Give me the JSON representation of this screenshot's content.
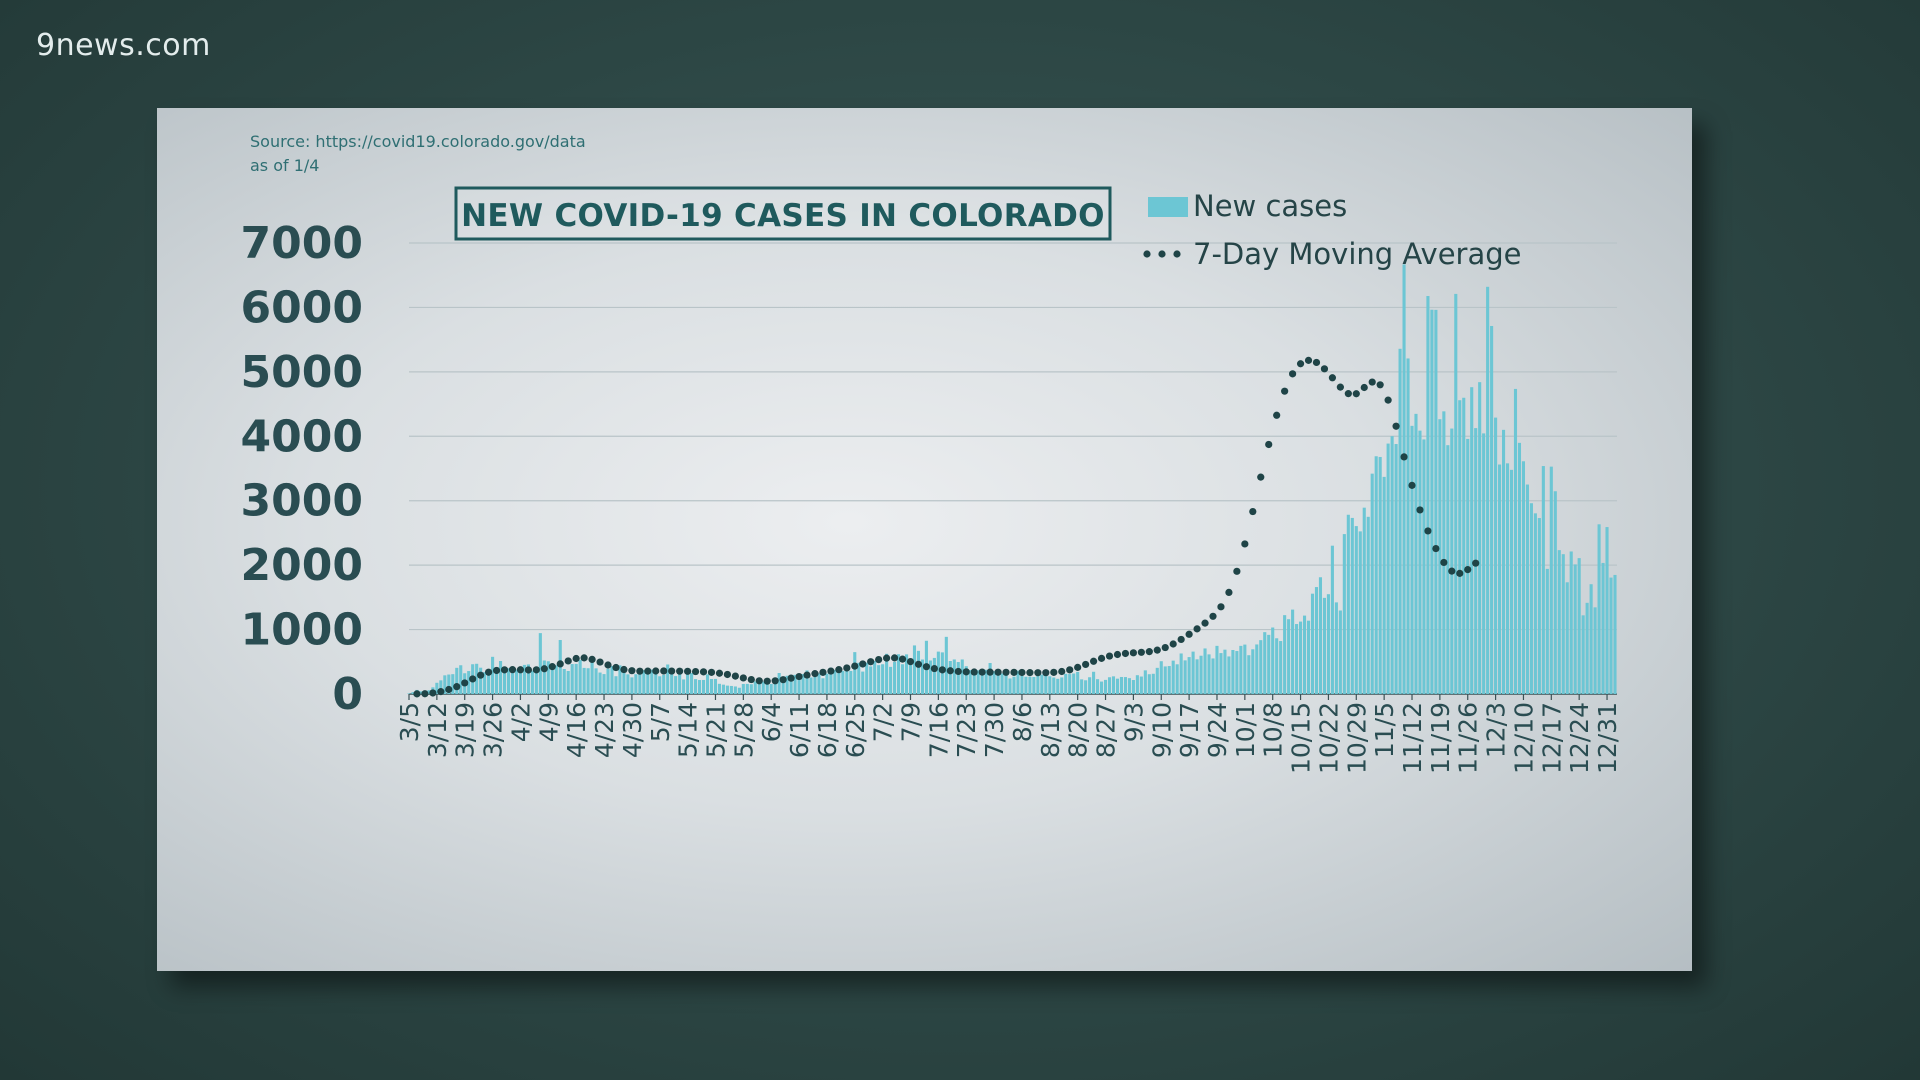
{
  "brand": {
    "name": "9news.com"
  },
  "chart_data": {
    "type": "bar",
    "title": "NEW COVID-19 CASES IN COLORADO",
    "source": "Source: https://covid19.colorado.gov/data",
    "as_of": "as of 1/4",
    "xlabel": "",
    "ylabel": "",
    "ylim": [
      0,
      7000
    ],
    "yticks": [
      0,
      1000,
      2000,
      3000,
      4000,
      5000,
      6000,
      7000
    ],
    "grid": true,
    "legend_position": "top-right",
    "colors": {
      "bar": "#6cc6d4",
      "bar_edge": "#52aebf",
      "average": "#1f4447",
      "grid": "#b9c4c8",
      "axis": "#3b5256"
    },
    "series": [
      {
        "name": "New cases",
        "type": "bar",
        "x_start": "3/5",
        "values": [
          9,
          28,
          63,
          41,
          25,
          58,
          103,
          174,
          212,
          290,
          302,
          308,
          406,
          446,
          322,
          356,
          462,
          469,
          408,
          339,
          292,
          577,
          350,
          512,
          409,
          400,
          396,
          376,
          386,
          452,
          459,
          363,
          395,
          945,
          520,
          508,
          456,
          445,
          838,
          388,
          357,
          465,
          467,
          527,
          405,
          400,
          488,
          398,
          333,
          309,
          392,
          434,
          276,
          445,
          408,
          305,
          258,
          307,
          367,
          370,
          338,
          380,
          355,
          275,
          298,
          458,
          355,
          278,
          342,
          226,
          316,
          327,
          231,
          217,
          218,
          304,
          233,
          234,
          158,
          145,
          130,
          125,
          117,
          97,
          156,
          157,
          152,
          195,
          166,
          193,
          227,
          156,
          251,
          326,
          237,
          283,
          289,
          298,
          216,
          310,
          366,
          257,
          352,
          320,
          244,
          316,
          411,
          374,
          327,
          359,
          365,
          358,
          650,
          484,
          348,
          487,
          428,
          512,
          448,
          462,
          624,
          421,
          498,
          617,
          462,
          615,
          520,
          754,
          670,
          535,
          826,
          520,
          560,
          658,
          646,
          887,
          512,
          536,
          496,
          536,
          431,
          372,
          347,
          369,
          387,
          376,
          481,
          355,
          299,
          319,
          294,
          241,
          268,
          363,
          279,
          268,
          267,
          264,
          279,
          301,
          282,
          275,
          256,
          236,
          257,
          313,
          309,
          318,
          343,
          227,
          213,
          260,
          345,
          230,
          193,
          219,
          260,
          274,
          238,
          264,
          263,
          246,
          217,
          292,
          271,
          367,
          307,
          314,
          406,
          509,
          428,
          434,
          518,
          461,
          629,
          522,
          573,
          658,
          538,
          594,
          707,
          615,
          552,
          747,
          635,
          688,
          583,
          683,
          667,
          747,
          767,
          602,
          694,
          769,
          836,
          960,
          918,
          1032,
          865,
          822,
          1224,
          1161,
          1310,
          1086,
          1124,
          1217,
          1138,
          1557,
          1660,
          1812,
          1492,
          1549,
          2302,
          1422,
          1296,
          2482,
          2782,
          2733,
          2606,
          2524,
          2892,
          2750,
          3420,
          3690,
          3679,
          3370,
          3887,
          4002,
          3880,
          5358,
          6667,
          5208,
          4162,
          4348,
          4088,
          3951,
          6177,
          5964,
          5962,
          4265,
          4387,
          3862,
          4120,
          6210,
          4560,
          4598,
          3959,
          4762,
          4127,
          4840,
          4045,
          6320,
          5712,
          4290,
          3562,
          4100,
          3580,
          3479,
          4735,
          3898,
          3612,
          3251,
          2961,
          2804,
          2731,
          3538,
          1942,
          3529,
          3147,
          2233,
          2170,
          1734,
          2212,
          2012,
          2109,
          1221,
          1415,
          1704,
          1345,
          2634,
          2034,
          2591,
          1807,
          1848
        ]
      },
      {
        "name": "7-Day Moving Average",
        "type": "dotted-line",
        "x_start": "3/7",
        "x_step_days": 2,
        "values": [
          2,
          4,
          16,
          37,
          70,
          114,
          172,
          234,
          292,
          338,
          365,
          375,
          378,
          376,
          373,
          375,
          392,
          425,
          467,
          513,
          551,
          561,
          537,
          496,
          450,
          411,
          380,
          362,
          354,
          355,
          357,
          358,
          356,
          354,
          352,
          348,
          344,
          336,
          322,
          303,
          278,
          249,
          224,
          205,
          199,
          205,
          222,
          246,
          271,
          294,
          316,
          336,
          356,
          378,
          404,
          433,
          466,
          501,
          534,
          557,
          561,
          541,
          503,
          461,
          424,
          395,
          375,
          361,
          350,
          344,
          341,
          340,
          339,
          338,
          337,
          336,
          334,
          332,
          331,
          331,
          336,
          349,
          375,
          413,
          459,
          508,
          553,
          589,
          613,
          629,
          639,
          647,
          658,
          681,
          721,
          776,
          847,
          927,
          1011,
          1100,
          1206,
          1353,
          1577,
          1904,
          2329,
          2832,
          3366,
          3873,
          4326,
          4700,
          4969,
          5126,
          5178,
          5146,
          5047,
          4908,
          4763,
          4662,
          4660,
          4757,
          4842,
          4799,
          4561,
          4156,
          3680,
          3238,
          2857,
          2531,
          2257,
          2042,
          1907,
          1872,
          1931,
          2030
        ]
      }
    ],
    "x_tick_labels": [
      "3/5",
      "3/12",
      "3/19",
      "3/26",
      "4/2",
      "4/9",
      "4/16",
      "4/23",
      "4/30",
      "5/7",
      "5/14",
      "5/21",
      "5/28",
      "6/4",
      "6/11",
      "6/18",
      "6/25",
      "7/2",
      "7/9",
      "7/16",
      "7/23",
      "7/30",
      "8/6",
      "8/13",
      "8/20",
      "8/27",
      "9/3",
      "9/10",
      "9/17",
      "9/24",
      "10/1",
      "10/8",
      "10/15",
      "10/22",
      "10/29",
      "11/5",
      "11/12",
      "11/19",
      "11/26",
      "12/3",
      "12/10",
      "12/17",
      "12/24",
      "12/31"
    ],
    "x_tick_step_days": 7
  }
}
